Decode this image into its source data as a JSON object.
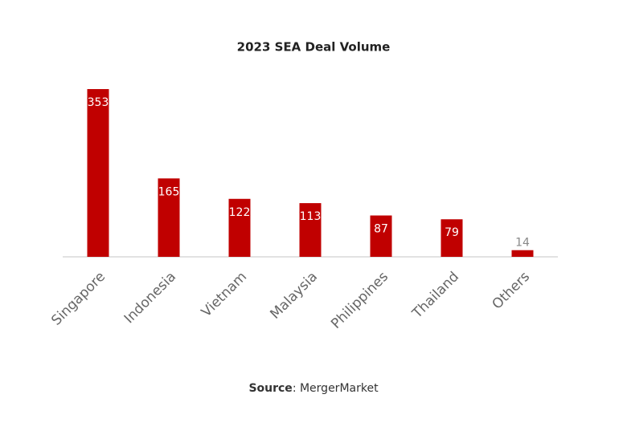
{
  "chart_data": {
    "type": "bar",
    "title": "2023 SEA Deal Volume",
    "categories": [
      "Singapore",
      "Indonesia",
      "Vietnam",
      "Malaysia",
      "Philippines",
      "Thailand",
      "Others"
    ],
    "values": [
      353,
      165,
      122,
      113,
      87,
      79,
      14
    ],
    "color": "#c00000",
    "source_label": "Source",
    "source_text": ": MergerMarket"
  }
}
